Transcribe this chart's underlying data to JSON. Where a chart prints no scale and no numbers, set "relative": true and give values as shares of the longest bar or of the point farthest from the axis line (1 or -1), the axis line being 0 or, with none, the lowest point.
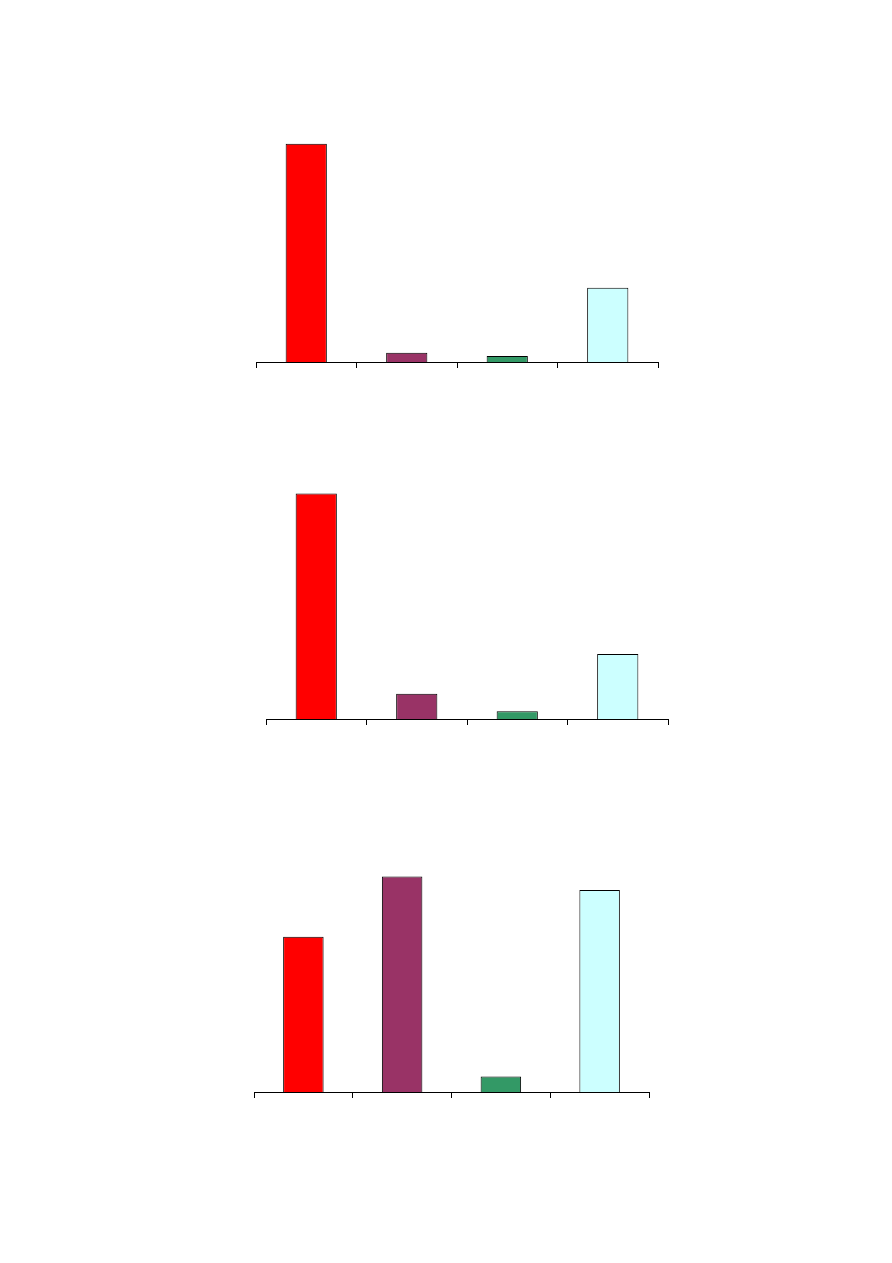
{
  "chart_data": [
    {
      "type": "bar",
      "relative": true,
      "categories": [
        null,
        null,
        null,
        null
      ],
      "values": [
        1,
        0.042,
        0.028,
        0.34
      ],
      "colors": [
        "#ff0000",
        "#993366",
        "#339966",
        "#ccffff"
      ]
    },
    {
      "type": "bar",
      "relative": true,
      "categories": [
        null,
        null,
        null,
        null
      ],
      "values": [
        1,
        0.112,
        0.034,
        0.288
      ],
      "colors": [
        "#ff0000",
        "#993366",
        "#339966",
        "#ccffff"
      ]
    },
    {
      "type": "bar",
      "relative": true,
      "categories": [
        null,
        null,
        null,
        null
      ],
      "values": [
        0.72,
        1,
        0.072,
        0.937
      ],
      "colors": [
        "#ff0000",
        "#993366",
        "#339966",
        "#ccffff"
      ]
    }
  ]
}
